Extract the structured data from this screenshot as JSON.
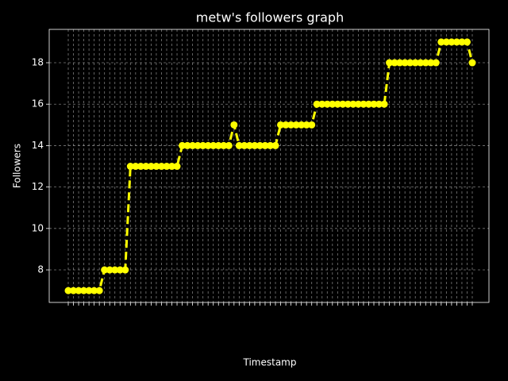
{
  "chart_data": {
    "type": "line",
    "title": "metw's followers graph",
    "x_label": "Timestamp",
    "y_label": "Followers",
    "categories": [
      null,
      null,
      null,
      null,
      null,
      null,
      null,
      null,
      null,
      null,
      null,
      null,
      null,
      null,
      null,
      null,
      null,
      null,
      null,
      null,
      null,
      null,
      null,
      null,
      null,
      null,
      null,
      null,
      null,
      null,
      null,
      null,
      null,
      null,
      null,
      null,
      null,
      null,
      null,
      null,
      null,
      null,
      null,
      null,
      null,
      null,
      null,
      null,
      null,
      null,
      null,
      null,
      null,
      null,
      null,
      null,
      null,
      null,
      null,
      null,
      null,
      null,
      null,
      null,
      null,
      null,
      null,
      null,
      null,
      null,
      null,
      null,
      null,
      null,
      null,
      null,
      null,
      null,
      null
    ],
    "series": [
      {
        "name": "Followers",
        "color": "#ffff00",
        "values": [
          7,
          7,
          7,
          7,
          7,
          7,
          7,
          8,
          8,
          8,
          8,
          8,
          13,
          13,
          13,
          13,
          13,
          13,
          13,
          13,
          13,
          13,
          14,
          14,
          14,
          14,
          14,
          14,
          14,
          14,
          14,
          14,
          15,
          14,
          14,
          14,
          14,
          14,
          14,
          14,
          14,
          15,
          15,
          15,
          15,
          15,
          15,
          15,
          16,
          16,
          16,
          16,
          16,
          16,
          16,
          16,
          16,
          16,
          16,
          16,
          16,
          16,
          18,
          18,
          18,
          18,
          18,
          18,
          18,
          18,
          18,
          18,
          19,
          19,
          19,
          19,
          19,
          19,
          18
        ]
      }
    ],
    "ylim": [
      6.43,
      19.61
    ],
    "yticks": [
      8,
      10,
      12,
      14,
      16,
      18
    ],
    "grid": true
  }
}
